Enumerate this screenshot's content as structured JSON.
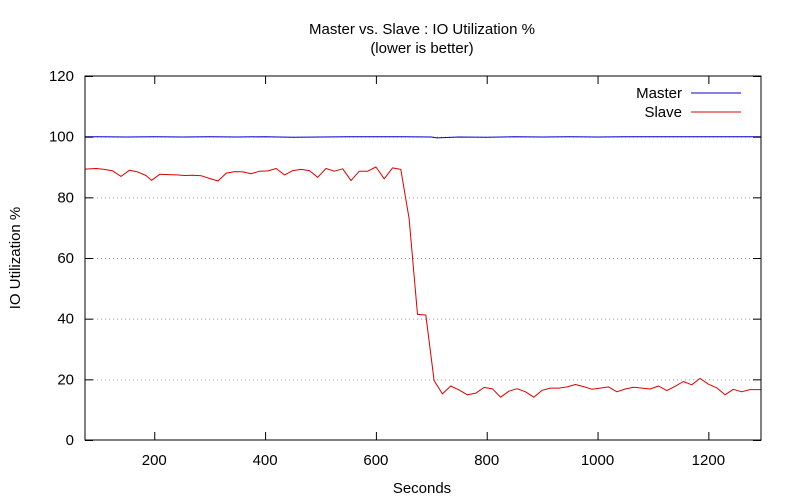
{
  "chart_data": {
    "type": "line",
    "title": "Master vs. Slave : IO Utilization %",
    "subtitle": "(lower is better)",
    "xlabel": "Seconds",
    "ylabel": "IO Utilization %",
    "xlim": [
      75,
      1295
    ],
    "ylim": [
      0,
      120
    ],
    "xticks": [
      200,
      400,
      600,
      800,
      1000,
      1200
    ],
    "yticks": [
      0,
      20,
      40,
      60,
      80,
      100,
      120
    ],
    "grid": "horizontal dotted",
    "legend_position": "top-right",
    "series": [
      {
        "name": "Master",
        "color": "#0000cc",
        "points": [
          [
            75,
            100
          ],
          [
            100,
            100
          ],
          [
            150,
            99.9
          ],
          [
            200,
            100
          ],
          [
            250,
            99.9
          ],
          [
            300,
            100
          ],
          [
            350,
            99.9
          ],
          [
            400,
            100
          ],
          [
            450,
            99.8
          ],
          [
            500,
            99.9
          ],
          [
            550,
            100
          ],
          [
            600,
            100
          ],
          [
            650,
            100
          ],
          [
            700,
            99.9
          ],
          [
            710,
            99.6
          ],
          [
            750,
            99.9
          ],
          [
            800,
            99.8
          ],
          [
            850,
            100
          ],
          [
            900,
            99.9
          ],
          [
            950,
            100
          ],
          [
            1000,
            99.9
          ],
          [
            1050,
            100
          ],
          [
            1100,
            100
          ],
          [
            1150,
            100
          ],
          [
            1200,
            100
          ],
          [
            1250,
            100
          ],
          [
            1295,
            100
          ]
        ]
      },
      {
        "name": "Slave",
        "color": "#dd0000",
        "points": [
          [
            75,
            89.3
          ],
          [
            95,
            89.5
          ],
          [
            110,
            89.2
          ],
          [
            125,
            88.7
          ],
          [
            140,
            86.9
          ],
          [
            155,
            88.9
          ],
          [
            170,
            88.4
          ],
          [
            185,
            87.2
          ],
          [
            195,
            85.6
          ],
          [
            210,
            87.6
          ],
          [
            225,
            87.5
          ],
          [
            240,
            87.4
          ],
          [
            255,
            87.2
          ],
          [
            270,
            87.3
          ],
          [
            285,
            87.1
          ],
          [
            300,
            86.2
          ],
          [
            315,
            85.4
          ],
          [
            330,
            88.0
          ],
          [
            345,
            88.5
          ],
          [
            360,
            88.4
          ],
          [
            375,
            87.8
          ],
          [
            390,
            88.6
          ],
          [
            405,
            88.7
          ],
          [
            420,
            89.5
          ],
          [
            435,
            87.4
          ],
          [
            450,
            88.8
          ],
          [
            465,
            89.2
          ],
          [
            480,
            88.8
          ],
          [
            495,
            86.6
          ],
          [
            510,
            89.5
          ],
          [
            525,
            88.6
          ],
          [
            540,
            89.4
          ],
          [
            555,
            85.5
          ],
          [
            570,
            88.6
          ],
          [
            585,
            88.6
          ],
          [
            600,
            90.0
          ],
          [
            615,
            86.1
          ],
          [
            630,
            89.7
          ],
          [
            645,
            89.2
          ],
          [
            660,
            73.0
          ],
          [
            675,
            41.4
          ],
          [
            690,
            41.2
          ],
          [
            705,
            19.6
          ],
          [
            720,
            15.2
          ],
          [
            735,
            17.8
          ],
          [
            750,
            16.5
          ],
          [
            765,
            14.9
          ],
          [
            780,
            15.4
          ],
          [
            795,
            17.3
          ],
          [
            810,
            16.9
          ],
          [
            825,
            14.1
          ],
          [
            840,
            16.1
          ],
          [
            855,
            16.9
          ],
          [
            870,
            15.9
          ],
          [
            885,
            14.1
          ],
          [
            900,
            16.4
          ],
          [
            915,
            17.1
          ],
          [
            930,
            17.1
          ],
          [
            945,
            17.5
          ],
          [
            960,
            18.3
          ],
          [
            975,
            17.6
          ],
          [
            990,
            16.7
          ],
          [
            1005,
            17.1
          ],
          [
            1020,
            17.5
          ],
          [
            1035,
            15.9
          ],
          [
            1050,
            16.8
          ],
          [
            1065,
            17.4
          ],
          [
            1080,
            17.1
          ],
          [
            1095,
            16.8
          ],
          [
            1110,
            17.8
          ],
          [
            1125,
            16.3
          ],
          [
            1140,
            17.7
          ],
          [
            1155,
            19.3
          ],
          [
            1170,
            18.2
          ],
          [
            1185,
            20.3
          ],
          [
            1200,
            18.4
          ],
          [
            1215,
            17.2
          ],
          [
            1230,
            14.9
          ],
          [
            1245,
            16.7
          ],
          [
            1260,
            15.9
          ],
          [
            1275,
            16.6
          ],
          [
            1295,
            16.6
          ]
        ]
      }
    ]
  }
}
